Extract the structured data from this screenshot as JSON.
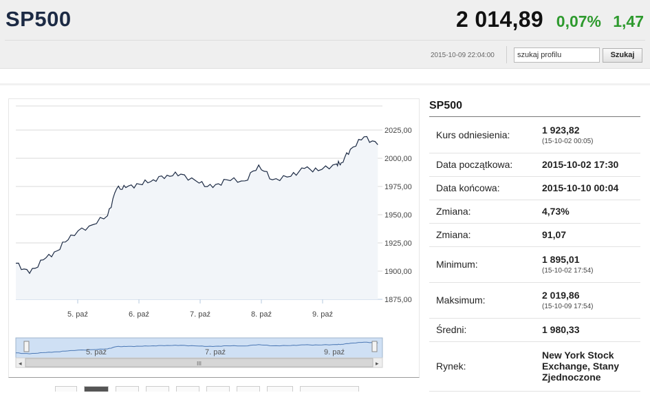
{
  "header": {
    "symbol": "SP500",
    "price": "2 014,89",
    "change_pct": "0,07%",
    "change_abs": "1,47",
    "timestamp": "2015-10-09 22:04:00",
    "search_value": "szukaj profilu",
    "search_button": "Szukaj"
  },
  "info": {
    "title": "SP500",
    "rows": [
      {
        "label": "Kurs odniesienia:",
        "value": "1 923,82",
        "sub": "(15-10-02 00:05)"
      },
      {
        "label": "Data początkowa:",
        "value": "2015-10-02 17:30",
        "sub": ""
      },
      {
        "label": "Data końcowa:",
        "value": "2015-10-10 00:04",
        "sub": ""
      },
      {
        "label": "Zmiana:",
        "value": "4,73%",
        "sub": ""
      },
      {
        "label": "Zmiana:",
        "value": "91,07",
        "sub": ""
      },
      {
        "label": "Minimum:",
        "value": "1 895,01",
        "sub": "(15-10-02 17:54)"
      },
      {
        "label": "Maksimum:",
        "value": "2 019,86",
        "sub": "(15-10-09 17:54)"
      },
      {
        "label": "Średni:",
        "value": "1 980,33",
        "sub": ""
      },
      {
        "label": "Rynek:",
        "value": "New York Stock Exchange, Stany Zjednoczone",
        "sub": ""
      }
    ]
  },
  "colors": {
    "up": "#2e9a2e",
    "line": "#1c2a44",
    "area": "#f2f5f9",
    "navigator_fill": "#cfe0f4"
  },
  "chart_data": {
    "type": "area",
    "y_ticks": [
      "2025,00",
      "2000,00",
      "1975,00",
      "1950,00",
      "1925,00",
      "1900,00",
      "1875,00"
    ],
    "x_ticks": [
      "5. paź",
      "6. paź",
      "7. paź",
      "8. paź",
      "9. paź"
    ],
    "navigator_ticks": [
      "5. paź",
      "7. paź",
      "9. paź"
    ],
    "ylim": [
      1870,
      2035
    ],
    "grid": true,
    "x": [
      0.0,
      0.3,
      0.6,
      0.9,
      1.2,
      1.6,
      2.0,
      2.2,
      2.4,
      2.7,
      3.0,
      3.3,
      3.6,
      4.0,
      4.3,
      4.6,
      5.0,
      5.3,
      5.6,
      6.0,
      6.3,
      6.6,
      7.0,
      7.1,
      7.3,
      7.6,
      7.9
    ],
    "values": [
      1907,
      1898,
      1910,
      1918,
      1932,
      1940,
      1949,
      1973,
      1974,
      1977,
      1981,
      1985,
      1986,
      1978,
      1974,
      1981,
      1980,
      1994,
      1981,
      1984,
      1991,
      1989,
      1995,
      1996,
      2008,
      2019,
      2012
    ]
  }
}
